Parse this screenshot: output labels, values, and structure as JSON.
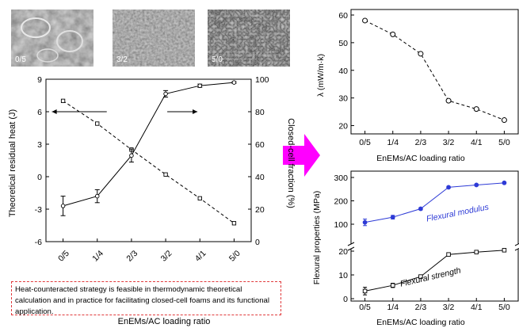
{
  "theme": {
    "arrow_color": "#ff00ff",
    "modulus_color": "#2e3bd6",
    "strength_color": "#000000",
    "note_border": "#e0393b"
  },
  "images": [
    {
      "label": "0/5",
      "texture": "large-cells"
    },
    {
      "label": "3/2",
      "texture": "fine-cells"
    },
    {
      "label": "5/0",
      "texture": "rough-dense"
    }
  ],
  "note": "Heat-counteracted strategy is feasible in thermodynamic theoretical calculation and in practice for facilitating closed-cell foams and its functional application.",
  "chart_data": [
    {
      "type": "line",
      "xlabel": "EnEMs/AC loading ratio",
      "categories": [
        "0/5",
        "1/4",
        "2/3",
        "3/2",
        "4/1",
        "5/0"
      ],
      "series": [
        {
          "axis": "left",
          "marker": "circle",
          "style": "dashed",
          "values": [
            7.0,
            4.9,
            2.5,
            0.2,
            -2.0,
            -4.3
          ]
        },
        {
          "axis": "right",
          "marker": "square",
          "style": "solid",
          "values": [
            22,
            28,
            53,
            91,
            96,
            98
          ],
          "errors": [
            6,
            4,
            4,
            2,
            1,
            0.5
          ]
        }
      ],
      "ylabel": "Theoretical residual heat (J)",
      "ylim": [
        -6,
        9
      ],
      "yticks": [
        -6,
        -3,
        0,
        3,
        6,
        9
      ],
      "y2label": "Closed-cell fraction (%)",
      "y2lim": [
        0,
        100
      ],
      "y2ticks": [
        0,
        20,
        40,
        60,
        80,
        100
      ]
    },
    {
      "type": "line",
      "xlabel": "EnEMs/AC loading ratio",
      "categories": [
        "0/5",
        "1/4",
        "2/3",
        "3/2",
        "4/1",
        "5/0"
      ],
      "series": [
        {
          "marker": "circle",
          "style": "dashed",
          "values": [
            58,
            53,
            46,
            29,
            26,
            22
          ]
        }
      ],
      "ylabel": "λ (mW/m·k)",
      "ylim": [
        17,
        62
      ],
      "yticks": [
        20,
        30,
        40,
        50,
        60
      ]
    },
    {
      "type": "line",
      "xlabel": "EnEMs/AC loading ratio",
      "categories": [
        "0/5",
        "1/4",
        "2/3",
        "3/2",
        "4/1",
        "5/0"
      ],
      "ylabel": "Flexural properties (MPa)",
      "series": [
        {
          "name": "Flexural modulus",
          "panel": "upper",
          "values": [
            108,
            130,
            166,
            258,
            268,
            277
          ],
          "errors": [
            14,
            8,
            5,
            4,
            3,
            3
          ]
        },
        {
          "name": "Flexural strength",
          "panel": "lower",
          "values": [
            3.2,
            5.6,
            9.3,
            18.6,
            19.6,
            20.4
          ],
          "errors": [
            1.6,
            0.9,
            0.6,
            0.5,
            0.4,
            0.3
          ]
        }
      ],
      "upper_yticks": [
        100,
        200,
        300
      ],
      "lower_yticks": [
        0,
        10,
        20
      ]
    }
  ]
}
